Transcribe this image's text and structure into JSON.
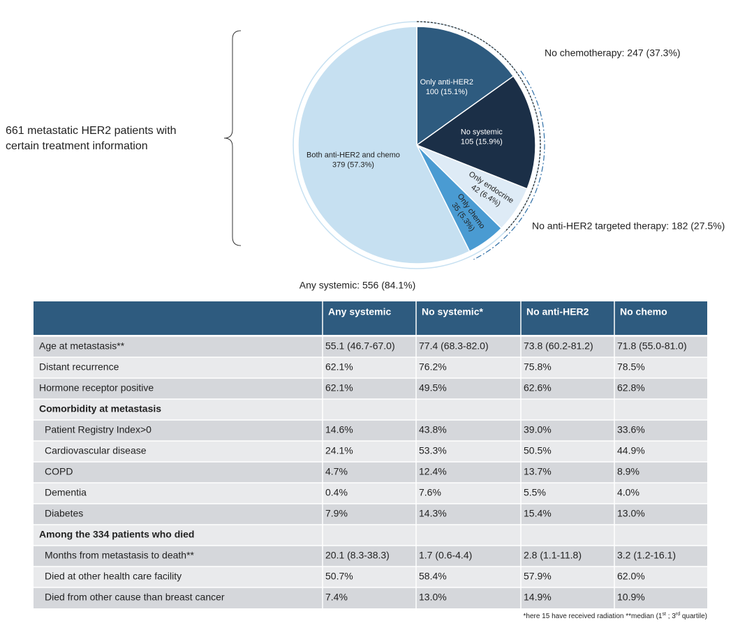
{
  "chart_data": {
    "type": "pie",
    "categories": [
      "Only anti-HER2",
      "No systemic",
      "Only endocrine",
      "Only chemo",
      "Both anti-HER2 and chemo"
    ],
    "values": [
      100,
      105,
      42,
      35,
      379
    ],
    "value_labels": [
      "100 (15.1%)",
      "105 (15.9%)",
      "42 (6.4%)",
      "35 (5.3%)",
      "379 (57.3%)"
    ],
    "colors": [
      "#2e5b7f",
      "#1b2f47",
      "#deebf6",
      "#4a9bd2",
      "#c6e0f1"
    ],
    "annotations": {
      "no_chemo": "No chemotherapy: 247 (37.3%)",
      "no_anti_her2": "No anti-HER2 targeted therapy: 182 (27.5%)",
      "any_systemic": "Any systemic: 556 (84.1%)",
      "cohort": [
        "661 metastatic HER2 patients with",
        "certain treatment information"
      ]
    }
  },
  "table": {
    "header": [
      "Any systemic",
      "No systemic*",
      "No anti-HER2",
      "No chemo"
    ],
    "rows": [
      {
        "label": "Age at metastasis**",
        "cells": [
          "55.1 (46.7-67.0)",
          "77.4 (68.3-82.0)",
          "73.8 (60.2-81.2)",
          "71.8 (55.0-81.0)"
        ]
      },
      {
        "label": "Distant recurrence",
        "cells": [
          "62.1%",
          "76.2%",
          "75.8%",
          "78.5%"
        ]
      },
      {
        "label": "Hormone receptor positive",
        "cells": [
          "62.1%",
          "49.5%",
          "62.6%",
          "62.8%"
        ]
      },
      {
        "section": "Comorbidity at metastasis"
      },
      {
        "label": "Patient Registry Index>0",
        "indent": true,
        "cells": [
          "14.6%",
          "43.8%",
          "39.0%",
          "33.6%"
        ]
      },
      {
        "label": "Cardiovascular disease",
        "indent": true,
        "cells": [
          "24.1%",
          "53.3%",
          "50.5%",
          "44.9%"
        ]
      },
      {
        "label": "COPD",
        "indent": true,
        "cells": [
          "4.7%",
          "12.4%",
          "13.7%",
          "8.9%"
        ]
      },
      {
        "label": "Dementia",
        "indent": true,
        "cells": [
          "0.4%",
          "7.6%",
          "5.5%",
          "4.0%"
        ]
      },
      {
        "label": "Diabetes",
        "indent": true,
        "cells": [
          "7.9%",
          "14.3%",
          "15.4%",
          "13.0%"
        ]
      },
      {
        "section": "Among the 334 patients who died"
      },
      {
        "label": "Months from metastasis to death**",
        "indent": true,
        "cells": [
          "20.1 (8.3-38.3)",
          "1.7 (0.6-4.4)",
          "2.8 (1.1-11.8)",
          "3.2 (1.2-16.1)"
        ]
      },
      {
        "label": "Died at other health care facility",
        "indent": true,
        "cells": [
          "50.7%",
          "58.4%",
          "57.9%",
          "62.0%"
        ]
      },
      {
        "label": "Died from other cause than breast cancer",
        "indent": true,
        "cells": [
          "7.4%",
          "13.0%",
          "14.9%",
          "10.9%"
        ]
      }
    ],
    "footnote": [
      "*here 15 have received radiation **median (1",
      "st",
      " ; 3",
      "rd",
      " quartile)"
    ]
  }
}
